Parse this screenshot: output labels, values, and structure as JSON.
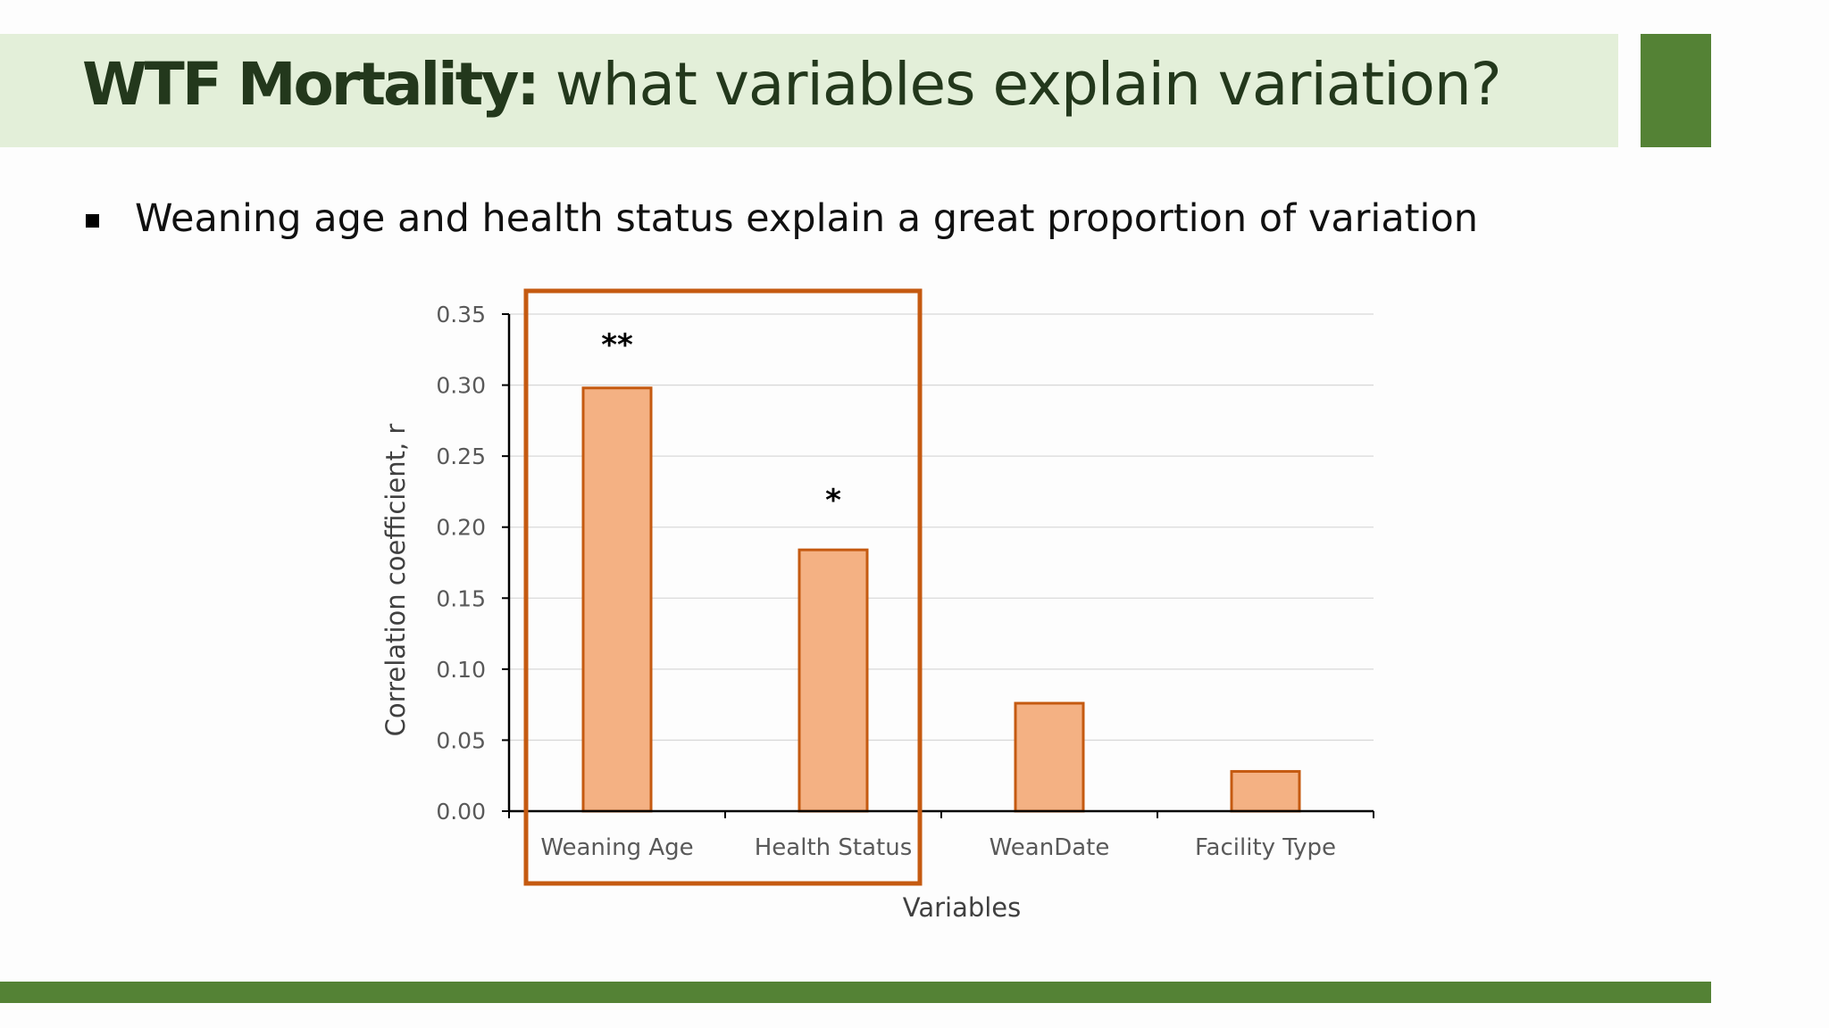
{
  "slide": {
    "title_bold": "WTF Mortality:",
    "title_rest": " what variables explain variation?",
    "bullet": "Weaning age and health status explain a great proportion of variation"
  },
  "colors": {
    "title_band": "#e3efd9",
    "accent_green": "#548235",
    "bar_fill": "#f4b183",
    "bar_stroke": "#c55a11",
    "highlight_box": "#c55a11"
  },
  "chart_data": {
    "type": "bar",
    "categories": [
      "Weaning Age",
      "Health Status",
      "WeanDate",
      "Facility Type"
    ],
    "values": [
      0.298,
      0.184,
      0.076,
      0.028
    ],
    "significance": [
      "**",
      "*",
      "",
      ""
    ],
    "xlabel": "Variables",
    "ylabel": "Correlation coefficient, r",
    "ylim": [
      0,
      0.35
    ],
    "yticks": [
      "0.00",
      "0.05",
      "0.10",
      "0.15",
      "0.20",
      "0.25",
      "0.30",
      "0.35"
    ],
    "grid": true,
    "highlighted_categories": [
      "Weaning Age",
      "Health Status"
    ]
  }
}
